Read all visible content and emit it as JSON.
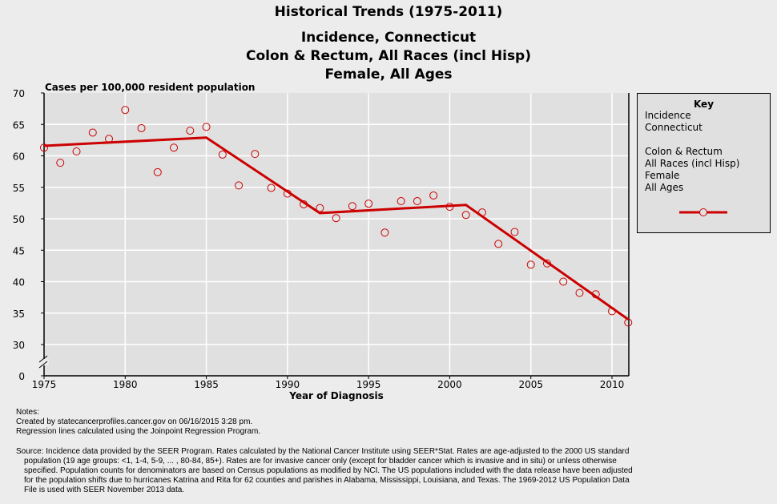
{
  "chart_data": {
    "type": "line",
    "title": "Historical Trends (1975-2011)",
    "subtitle_lines": [
      "Incidence, Connecticut",
      "Colon & Rectum, All Races (incl Hisp)",
      "Female, All Ages"
    ],
    "ylabel": "Cases per 100,000 resident population",
    "xlabel": "Year of Diagnosis",
    "ylim": [
      30,
      70
    ],
    "y_axis_break": true,
    "y_ticks": [
      "70",
      "65",
      "60",
      "55",
      "50",
      "45",
      "40",
      "35",
      "30",
      "0"
    ],
    "x_ticks": [
      "1975",
      "1980",
      "1985",
      "1990",
      "1995",
      "2000",
      "2005",
      "2010"
    ],
    "xlim": [
      1975,
      2011
    ],
    "grid": true,
    "colors": {
      "series": "#cc0000",
      "plot_bg": "#e0e0e0",
      "grid": "#ffffff"
    },
    "observed": {
      "x": [
        1975,
        1976,
        1977,
        1978,
        1979,
        1980,
        1981,
        1982,
        1983,
        1984,
        1985,
        1986,
        1987,
        1988,
        1989,
        1990,
        1991,
        1992,
        1993,
        1994,
        1995,
        1996,
        1997,
        1998,
        1999,
        2000,
        2001,
        2002,
        2003,
        2004,
        2005,
        2006,
        2007,
        2008,
        2009,
        2010,
        2011
      ],
      "y": [
        61.3,
        58.9,
        60.7,
        63.7,
        62.7,
        67.3,
        64.4,
        57.4,
        61.3,
        64.0,
        64.6,
        60.2,
        55.3,
        60.3,
        54.9,
        54.0,
        52.3,
        51.7,
        50.1,
        52.0,
        52.4,
        47.8,
        52.8,
        52.8,
        53.7,
        51.9,
        50.6,
        51.0,
        46.0,
        47.9,
        42.7,
        42.9,
        40.0,
        38.2,
        38.0,
        35.3,
        33.5
      ]
    },
    "regression": {
      "x": [
        1975,
        1985,
        1992,
        2001,
        2011
      ],
      "y": [
        61.6,
        62.9,
        50.9,
        52.2,
        34.0
      ]
    },
    "legend_placement": "right"
  },
  "key": {
    "title": "Key",
    "lines": [
      "Incidence",
      "Connecticut",
      "",
      "Colon & Rectum",
      "All Races (incl Hisp)",
      "Female",
      "All Ages"
    ]
  },
  "notes": {
    "lines": [
      "Notes:",
      "Created by statecancerprofiles.cancer.gov on 06/16/2015 3:28 pm.",
      "Regression lines calculated using the Joinpoint Regression Program."
    ],
    "source": "Source: Incidence data provided by the SEER Program. Rates calculated by the National Cancer Institute using SEER*Stat. Rates are age-adjusted to the 2000 US standard population (19 age groups: <1, 1-4, 5-9, ... , 80-84, 85+). Rates are for invasive cancer only (except for bladder cancer which is invasive and in situ) or unless otherwise specified. Population counts for denominators are based on Census populations as modified by NCI. The US populations included with the data release have been adjusted for the population shifts due to hurricanes Katrina and Rita for 62 counties and parishes in Alabama, Mississippi, Louisiana, and Texas. The 1969-2012 US Population Data File is used with SEER November 2013 data."
  }
}
